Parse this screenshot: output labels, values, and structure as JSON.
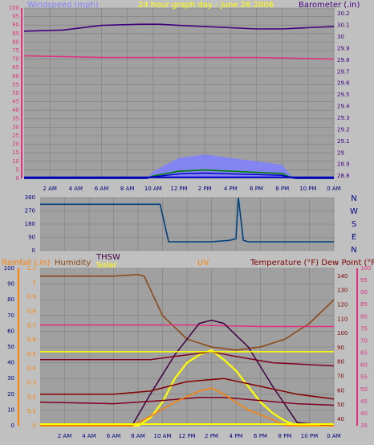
{
  "colors": {
    "background": "#c0c0c0",
    "plot_bg": "#a0a0a0",
    "grid": "#7f7f7f",
    "wind_speed": "#8080ff",
    "wind_avg": "#0000c0",
    "gust_green": "#008000",
    "barometer": "#400080",
    "pink": "#e0307f",
    "direction": "#004080",
    "rainfall": "#ff8000",
    "humidity": "#8b4513",
    "thsw": "#400040",
    "solar": "#ffff00",
    "uv": "#ff8000",
    "temperature": "#800000",
    "dew_point": "#800020"
  },
  "headers": {
    "wind_speed": "Windspeed (mph)",
    "period": "24 hour graph day - June 26 2006",
    "barometer": "Barometer (.in)",
    "rainfall": "Rainfall (.in)",
    "humidity": "Humidity",
    "thsw": "THSW",
    "solar": "Solar",
    "uv": "UV",
    "temp_dew": "Temperature (°F) Dew Point (°F)"
  },
  "chart_data": [
    {
      "type": "line",
      "panel": "wind-and-barometer",
      "x_labels": [
        "2 AM",
        "4 AM",
        "6 AM",
        "8 AM",
        "10 AM",
        "12 PM",
        "2 PM",
        "4 PM",
        "6 PM",
        "8 PM",
        "10 PM",
        "0 AM"
      ],
      "y_left_ticks": [
        "0",
        "5",
        "10",
        "15",
        "20",
        "25",
        "30",
        "35",
        "40",
        "45",
        "50",
        "55",
        "60",
        "65",
        "70",
        "75",
        "80",
        "85",
        "90",
        "95",
        "100"
      ],
      "y_right_ticks": [
        "28.8",
        "28.9",
        "29",
        "29.1",
        "29.2",
        "29.3",
        "29.4",
        "29.5",
        "29.6",
        "29.7",
        "29.8",
        "29.9",
        "30",
        "30.1",
        "30.2"
      ],
      "ylim_left": [
        0,
        100
      ],
      "ylim_right": [
        28.78,
        30.25
      ],
      "series": [
        {
          "name": "Windspeed (mph)",
          "axis": "left",
          "x": [
            0,
            9.5,
            10,
            11,
            12,
            13,
            14,
            15,
            16,
            17,
            18,
            19,
            20,
            20.5,
            21,
            24
          ],
          "values": [
            0,
            0,
            4,
            8,
            12,
            13,
            14,
            13,
            12,
            11,
            10,
            9,
            8,
            3,
            0,
            0
          ]
        },
        {
          "name": "Barometer (.in)",
          "axis": "right",
          "x": [
            0,
            3,
            6,
            9,
            10.5,
            12,
            14,
            16,
            18,
            20,
            22,
            24
          ],
          "values": [
            30.05,
            30.06,
            30.1,
            30.11,
            30.11,
            30.1,
            30.09,
            30.08,
            30.07,
            30.07,
            30.08,
            30.09
          ]
        },
        {
          "axis": "left",
          "x": [
            0,
            6,
            12,
            18,
            24
          ],
          "values": [
            72,
            71,
            71,
            71,
            70
          ]
        }
      ],
      "grid": true
    },
    {
      "type": "line",
      "panel": "wind-direction",
      "x_labels": [],
      "y_ticks": [
        "0",
        "90",
        "180",
        "270",
        "360"
      ],
      "direction_labels": [
        "N",
        "W",
        "S",
        "E",
        "N"
      ],
      "ylim": [
        0,
        360
      ],
      "series": [
        {
          "name": "Wind direction",
          "x": [
            0,
            9.8,
            10.5,
            12,
            14,
            15.5,
            16,
            16.2,
            16.6,
            17,
            19,
            24
          ],
          "values": [
            315,
            315,
            60,
            60,
            60,
            70,
            80,
            360,
            70,
            60,
            60,
            60
          ]
        }
      ],
      "grid": true
    },
    {
      "type": "line",
      "panel": "weather",
      "x_labels": [
        "2 AM",
        "4 AM",
        "6 AM",
        "8 AM",
        "10 AM",
        "12 PM",
        "2 PM",
        "4 PM",
        "6 PM",
        "8 PM",
        "10 PM",
        "0 AM"
      ],
      "y_left_ticks": [
        "0",
        "10",
        "20",
        "30",
        "40",
        "50",
        "60",
        "70",
        "80",
        "90",
        "100"
      ],
      "y_rain_ticks": [
        "0",
        "0.1",
        "0.2",
        "0.3",
        "0.4",
        "0.5",
        "0.6",
        "0.7",
        "0.8",
        "0.9",
        "1",
        "1.1"
      ],
      "y_temp_ticks": [
        "40",
        "50",
        "60",
        "70",
        "80",
        "90",
        "100",
        "110",
        "120",
        "130",
        "140"
      ],
      "y_uv_ticks": [
        "35",
        "40",
        "45",
        "50",
        "55",
        "60",
        "65",
        "70",
        "75",
        "80",
        "85",
        "90",
        "95",
        "100"
      ],
      "ylim_left": [
        0,
        100
      ],
      "series": [
        {
          "name": "Humidity",
          "x": [
            0,
            6,
            8,
            8.5,
            10,
            12,
            14,
            16,
            18,
            20,
            22,
            24
          ],
          "values": [
            95,
            95,
            96,
            95,
            70,
            55,
            50,
            48,
            50,
            55,
            65,
            80
          ]
        },
        {
          "x": [
            0,
            6,
            12,
            18,
            24
          ],
          "values": [
            64,
            64,
            64,
            63,
            63
          ]
        },
        {
          "name": "Solar",
          "x": [
            0,
            8,
            9,
            10,
            11,
            12,
            13,
            14,
            15,
            16,
            17,
            18,
            19,
            20,
            21,
            24
          ],
          "values": [
            0,
            0,
            5,
            15,
            30,
            40,
            45,
            48,
            42,
            35,
            25,
            15,
            8,
            3,
            0,
            0
          ]
        },
        {
          "name": "THSW",
          "x": [
            0,
            7.5,
            9,
            11,
            13,
            14,
            15,
            17,
            19,
            21,
            24
          ],
          "values": [
            0,
            0,
            20,
            45,
            65,
            67,
            65,
            50,
            25,
            2,
            0
          ]
        },
        {
          "name": "Temperature (°F)",
          "x": [
            0,
            6,
            9,
            12,
            15,
            18,
            21,
            24
          ],
          "values": [
            20,
            20,
            22,
            28,
            30,
            25,
            20,
            17
          ]
        },
        {
          "name": "Dew Point (°F)",
          "x": [
            0,
            6,
            10,
            13,
            15,
            18,
            21,
            24
          ],
          "values": [
            15,
            14,
            16,
            18,
            18,
            16,
            14,
            13
          ]
        },
        {
          "x": [
            0,
            9,
            12,
            14,
            16,
            19,
            24
          ],
          "values": [
            42,
            42,
            45,
            47,
            44,
            40,
            38
          ]
        },
        {
          "name": "UV",
          "x": [
            0,
            7.5,
            9,
            11,
            13,
            14,
            15,
            17,
            19,
            20,
            24
          ],
          "values": [
            0,
            0,
            6,
            15,
            22,
            24,
            20,
            10,
            4,
            0,
            0
          ]
        }
      ],
      "grid": true
    }
  ]
}
